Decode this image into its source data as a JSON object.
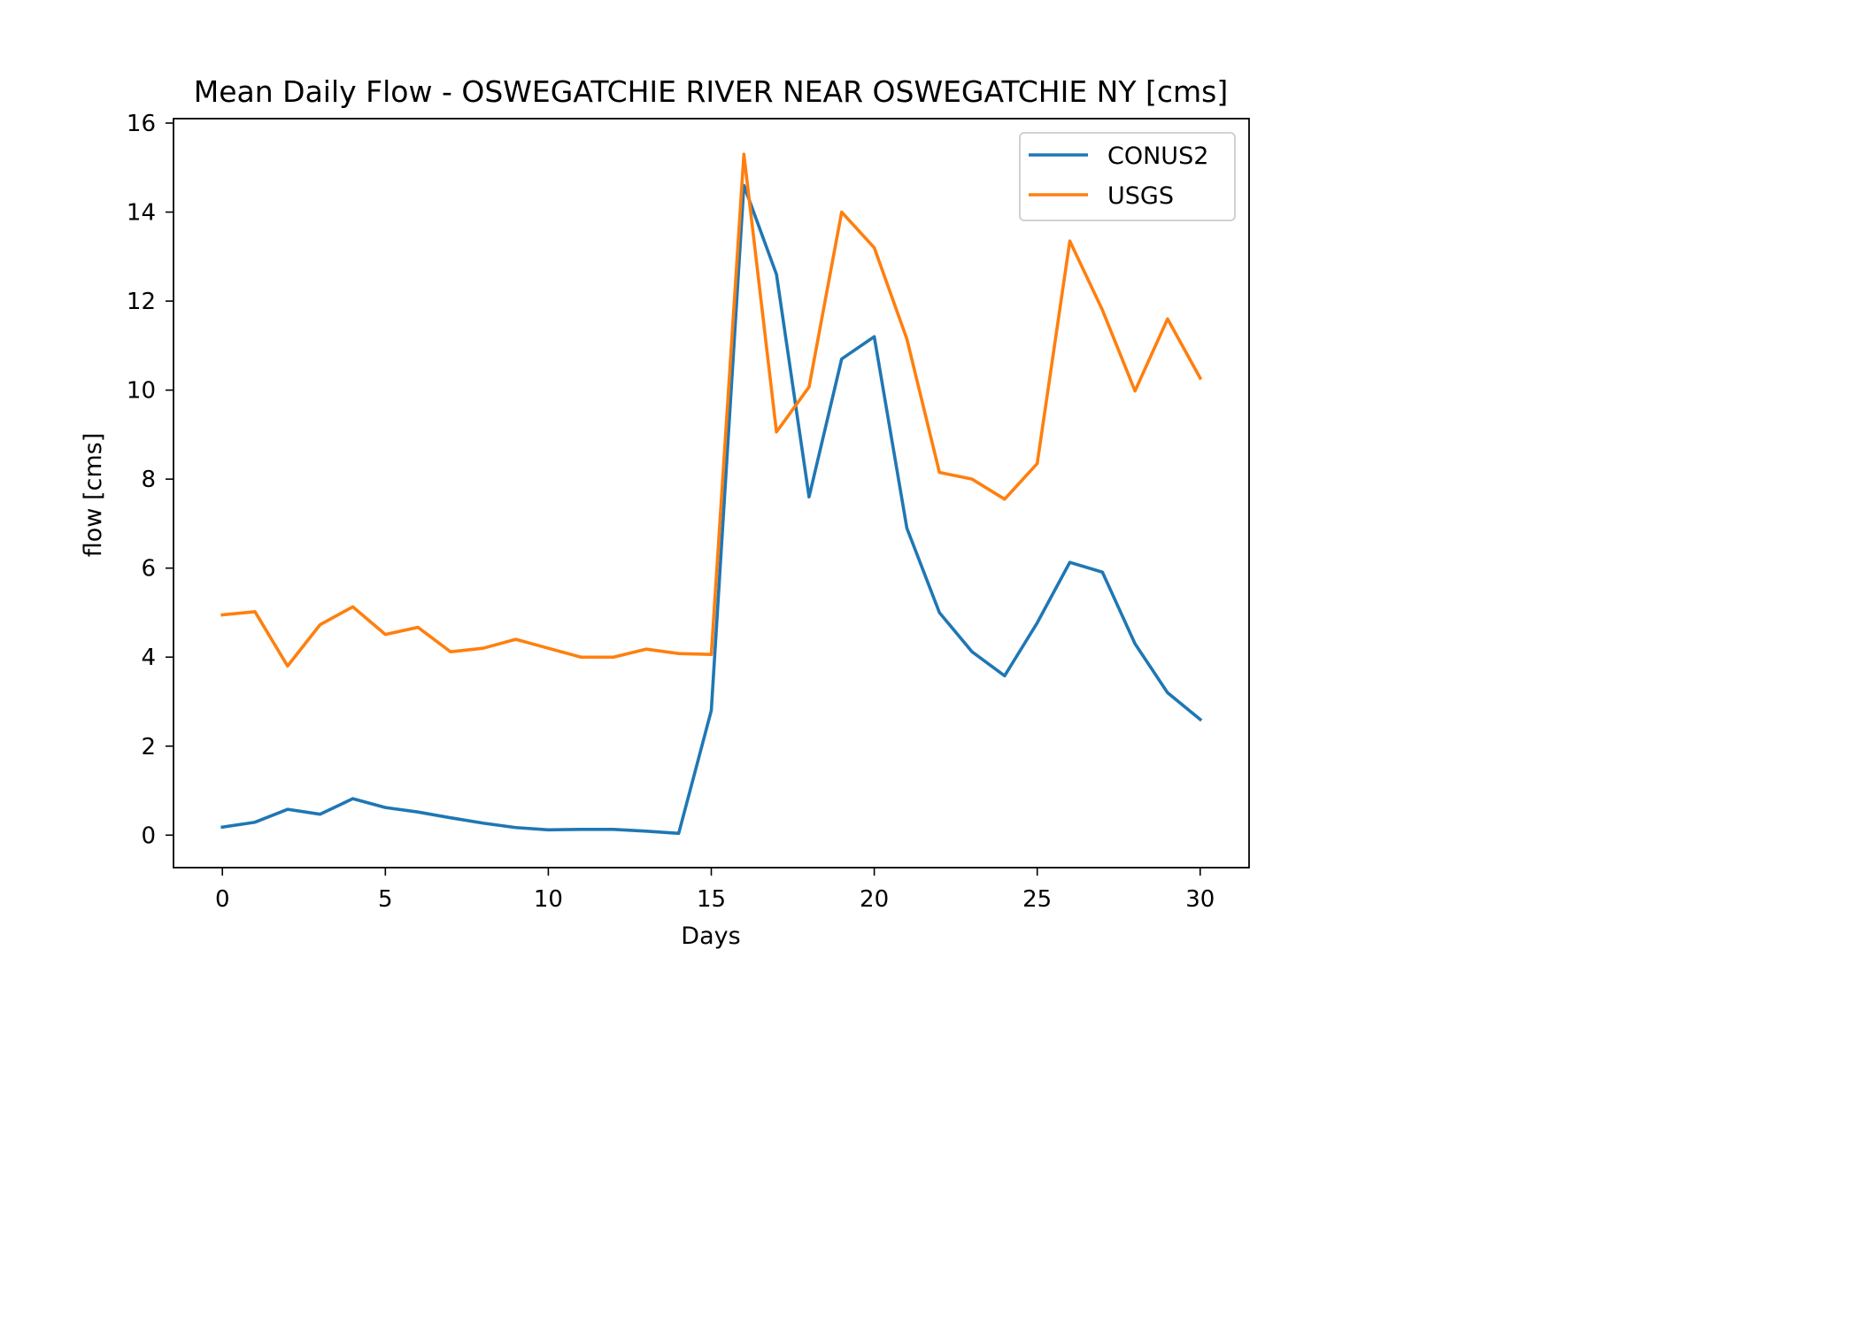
{
  "chart_data": {
    "type": "line",
    "title": "Mean Daily Flow - OSWEGATCHIE RIVER NEAR OSWEGATCHIE NY [cms]",
    "xlabel": "Days",
    "ylabel": "flow [cms]",
    "xlim": [
      -1.5,
      31.5
    ],
    "ylim": [
      -0.73,
      16.1
    ],
    "xticks": [
      0,
      5,
      10,
      15,
      20,
      25,
      30
    ],
    "yticks": [
      0,
      2,
      4,
      6,
      8,
      10,
      12,
      14,
      16
    ],
    "grid": false,
    "legend_position": "top-right",
    "x": [
      0,
      1,
      2,
      3,
      4,
      5,
      6,
      7,
      8,
      9,
      10,
      11,
      12,
      13,
      14,
      15,
      16,
      17,
      18,
      19,
      20,
      21,
      22,
      23,
      24,
      25,
      26,
      27,
      28,
      29,
      30
    ],
    "series": [
      {
        "name": "CONUS2",
        "color": "#1f77b4",
        "values": [
          0.18,
          0.29,
          0.58,
          0.47,
          0.82,
          0.62,
          0.52,
          0.39,
          0.27,
          0.17,
          0.12,
          0.13,
          0.13,
          0.09,
          0.04,
          2.8,
          14.6,
          12.6,
          7.6,
          10.7,
          11.2,
          6.9,
          5.0,
          4.12,
          3.58,
          4.77,
          6.13,
          5.91,
          4.3,
          3.2,
          2.6
        ]
      },
      {
        "name": "USGS",
        "color": "#ff7f0e",
        "values": [
          4.95,
          5.02,
          3.8,
          4.73,
          5.13,
          4.51,
          4.67,
          4.12,
          4.2,
          4.4,
          4.2,
          4.0,
          4.0,
          4.18,
          4.08,
          4.06,
          15.3,
          9.06,
          10.07,
          14.0,
          13.2,
          11.15,
          8.15,
          8.0,
          7.55,
          8.35,
          13.35,
          11.8,
          9.98,
          11.6,
          10.27
        ]
      }
    ]
  }
}
